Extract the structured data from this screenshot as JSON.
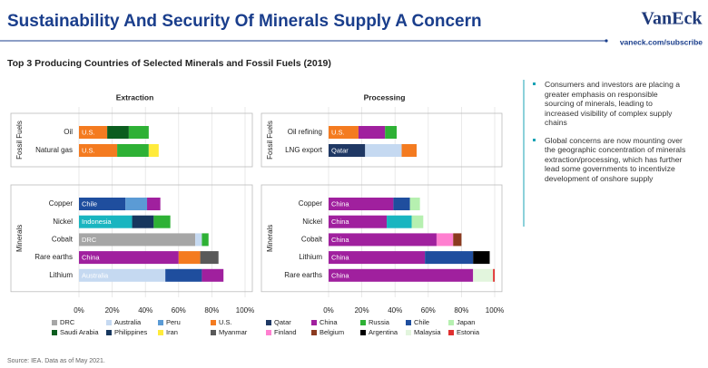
{
  "header": {
    "title": "Sustainability And Security Of Minerals Supply A Concern",
    "brand": "VanEck",
    "url": "vaneck.com/subscribe"
  },
  "subtitle": "Top 3 Producing Countries of Selected Minerals and Fossil Fuels (2019)",
  "chart_data": [
    {
      "type": "stacked-bar",
      "title": "Extraction",
      "xlim": [
        0,
        100
      ],
      "xticks": [
        {
          "value": 0,
          "label": "0%"
        },
        {
          "value": 20,
          "label": "20%"
        },
        {
          "value": 40,
          "label": "40%"
        },
        {
          "value": 60,
          "label": "60%"
        },
        {
          "value": 80,
          "label": "80%"
        },
        {
          "value": 100,
          "label": "100%"
        }
      ],
      "grid": true,
      "groups": [
        {
          "label": "Fossil Fuels",
          "categories": [
            {
              "name": "Oil",
              "segments": [
                {
                  "label": "U.S.",
                  "value": 17,
                  "color": "#f47b20"
                },
                {
                  "value": 13,
                  "color": "#0b5d1e"
                },
                {
                  "value": 12,
                  "color": "#2eb135"
                }
              ]
            },
            {
              "name": "Natural gas",
              "segments": [
                {
                  "label": "U.S.",
                  "value": 23,
                  "color": "#f47b20"
                },
                {
                  "value": 19,
                  "color": "#2eb135"
                },
                {
                  "value": 6,
                  "color": "#ffeb3b"
                }
              ]
            }
          ]
        },
        {
          "label": "Minerals",
          "categories": [
            {
              "name": "Copper",
              "segments": [
                {
                  "label": "Chile",
                  "value": 28,
                  "color": "#1f4e9e"
                },
                {
                  "value": 13,
                  "color": "#5b9bd5"
                },
                {
                  "value": 8,
                  "color": "#a0209e"
                }
              ]
            },
            {
              "name": "Nickel",
              "segments": [
                {
                  "label": "Indonesia",
                  "value": 32,
                  "color": "#19b5c0"
                },
                {
                  "value": 13,
                  "color": "#17375e"
                },
                {
                  "value": 10,
                  "color": "#2eb135"
                }
              ]
            },
            {
              "name": "Cobalt",
              "segments": [
                {
                  "label": "DRC",
                  "value": 70,
                  "color": "#a6a6a6"
                },
                {
                  "value": 4,
                  "color": "#c5d9f1"
                },
                {
                  "value": 4,
                  "color": "#2eb135"
                }
              ]
            },
            {
              "name": "Rare earths",
              "segments": [
                {
                  "label": "China",
                  "value": 60,
                  "color": "#a0209e"
                },
                {
                  "value": 13,
                  "color": "#f47b20"
                },
                {
                  "value": 11,
                  "color": "#595959"
                }
              ]
            },
            {
              "name": "Lithium",
              "segments": [
                {
                  "label": "Australia",
                  "value": 52,
                  "color": "#c5d9f1"
                },
                {
                  "value": 22,
                  "color": "#1f4e9e"
                },
                {
                  "value": 13,
                  "color": "#a0209e"
                }
              ]
            }
          ]
        }
      ]
    },
    {
      "type": "stacked-bar",
      "title": "Processing",
      "xlim": [
        0,
        100
      ],
      "xticks": [
        {
          "value": 0,
          "label": "0%"
        },
        {
          "value": 20,
          "label": "20%"
        },
        {
          "value": 40,
          "label": "40%"
        },
        {
          "value": 60,
          "label": "60%"
        },
        {
          "value": 80,
          "label": "80%"
        },
        {
          "value": 100,
          "label": "100%"
        }
      ],
      "grid": true,
      "groups": [
        {
          "label": "Fossil Fuels",
          "categories": [
            {
              "name": "Oil refining",
              "segments": [
                {
                  "label": "U.S.",
                  "value": 18,
                  "color": "#f47b20"
                },
                {
                  "value": 16,
                  "color": "#a0209e"
                },
                {
                  "value": 7,
                  "color": "#2eb135"
                }
              ]
            },
            {
              "name": "LNG export",
              "segments": [
                {
                  "label": "Qatar",
                  "value": 22,
                  "color": "#1f3864"
                },
                {
                  "value": 22,
                  "color": "#c5d9f1"
                },
                {
                  "value": 9,
                  "color": "#f47b20"
                }
              ]
            }
          ]
        },
        {
          "label": "Minerals",
          "categories": [
            {
              "name": "Copper",
              "segments": [
                {
                  "label": "China",
                  "value": 39,
                  "color": "#a0209e"
                },
                {
                  "value": 10,
                  "color": "#1f4e9e"
                },
                {
                  "value": 6,
                  "color": "#b6f0b0"
                }
              ]
            },
            {
              "name": "Nickel",
              "segments": [
                {
                  "label": "China",
                  "value": 35,
                  "color": "#a0209e"
                },
                {
                  "value": 15,
                  "color": "#19b5c0"
                },
                {
                  "value": 7,
                  "color": "#b6f0b0"
                }
              ]
            },
            {
              "name": "Cobalt",
              "segments": [
                {
                  "label": "China",
                  "value": 65,
                  "color": "#a0209e"
                },
                {
                  "value": 10,
                  "color": "#ff7fd0"
                },
                {
                  "value": 5,
                  "color": "#8b3a1f"
                }
              ]
            },
            {
              "name": "Lithium",
              "segments": [
                {
                  "label": "China",
                  "value": 58,
                  "color": "#a0209e"
                },
                {
                  "value": 29,
                  "color": "#1f4e9e"
                },
                {
                  "value": 10,
                  "color": "#000000"
                }
              ]
            },
            {
              "name": "Rare earths",
              "segments": [
                {
                  "label": "China",
                  "value": 87,
                  "color": "#a0209e"
                },
                {
                  "value": 12,
                  "color": "#e2f5dd"
                },
                {
                  "value": 1,
                  "color": "#e03030"
                }
              ]
            }
          ]
        }
      ]
    }
  ],
  "legend": [
    {
      "name": "DRC",
      "color": "#a6a6a6"
    },
    {
      "name": "Australia",
      "color": "#c5d9f1"
    },
    {
      "name": "Peru",
      "color": "#5b9bd5"
    },
    {
      "name": "U.S.",
      "color": "#f47b20"
    },
    {
      "name": "Qatar",
      "color": "#1f3864"
    },
    {
      "name": "China",
      "color": "#a0209e"
    },
    {
      "name": "Russia",
      "color": "#2eb135"
    },
    {
      "name": "Chile",
      "color": "#1f4e9e"
    },
    {
      "name": "Japan",
      "color": "#b6f0b0"
    },
    {
      "name": "Saudi Arabia",
      "color": "#0b5d1e"
    },
    {
      "name": "Philippines",
      "color": "#17375e"
    },
    {
      "name": "Iran",
      "color": "#ffeb3b"
    },
    {
      "name": "Myanmar",
      "color": "#595959"
    },
    {
      "name": "Finland",
      "color": "#ff7fd0"
    },
    {
      "name": "Belgium",
      "color": "#8b3a1f"
    },
    {
      "name": "Argentina",
      "color": "#000000"
    },
    {
      "name": "Malaysia",
      "color": "#e2f5dd"
    },
    {
      "name": "Estonia",
      "color": "#e03030"
    }
  ],
  "notes": [
    "Consumers and investors are placing a greater emphasis on responsible sourcing of minerals, leading to increased visibility of complex supply chains",
    "Global concerns are now mounting over the geographic concentration of minerals extraction/processing, which has further lead some governments to incentivize development of onshore supply"
  ],
  "source": "Source: IEA. Data as of May 2021."
}
